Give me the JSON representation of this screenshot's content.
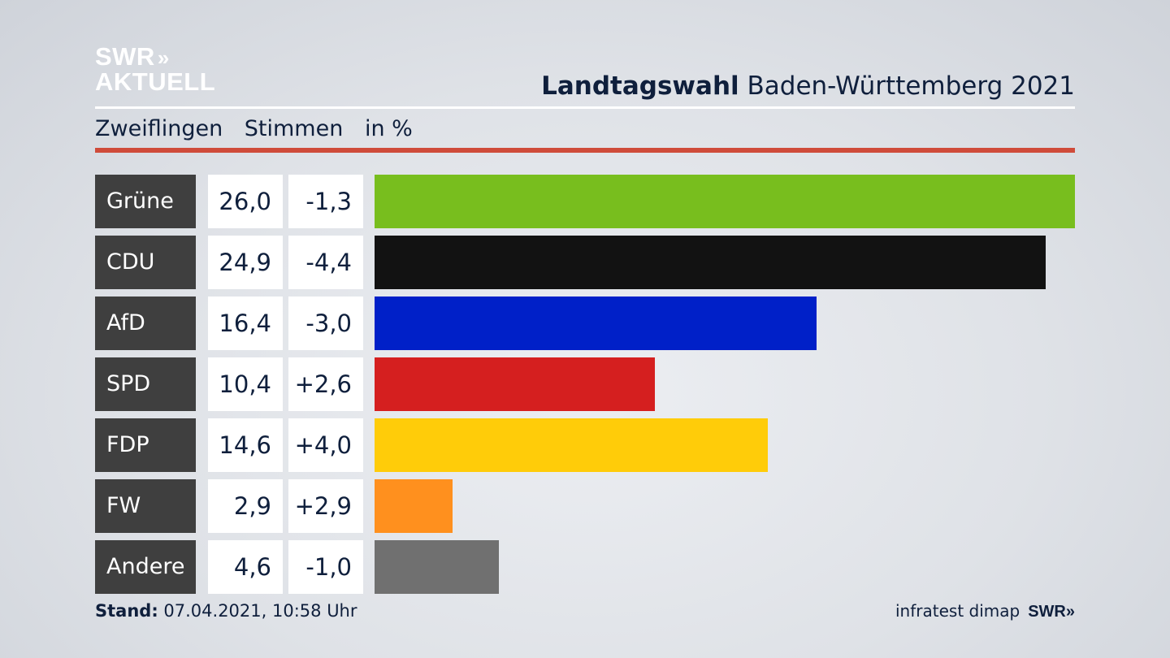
{
  "logo": {
    "line1": "SWR",
    "arrows": "»",
    "line2": "AKTUELL"
  },
  "header": {
    "title_bold": "Landtagswahl",
    "title_rest": "Baden-Württemberg 2021"
  },
  "subtitle": {
    "place": "Zweiflingen",
    "measure": "Stimmen",
    "unit": "in %"
  },
  "chart_data": {
    "type": "bar",
    "orientation": "horizontal",
    "categories": [
      "Grüne",
      "CDU",
      "AfD",
      "SPD",
      "FDP",
      "FW",
      "Andere"
    ],
    "values": [
      26.0,
      24.9,
      16.4,
      10.4,
      14.6,
      2.9,
      4.6
    ],
    "value_labels": [
      "26,0",
      "24,9",
      "16,4",
      "10,4",
      "14,6",
      "2,9",
      "4,6"
    ],
    "diff_labels": [
      "-1,3",
      "-4,4",
      "-3,0",
      "+2,6",
      "+4,0",
      "+2,9",
      "-1,0"
    ],
    "colors": [
      "#78be1e",
      "#121212",
      "#0020c8",
      "#d51f1f",
      "#ffcc09",
      "#ff901e",
      "#707070"
    ],
    "xlim": [
      0,
      26.0
    ]
  },
  "footer": {
    "stand_label": "Stand:",
    "stand_value": "07.04.2021, 10:58 Uhr",
    "source": "infratest dimap",
    "brand": "SWR»"
  }
}
